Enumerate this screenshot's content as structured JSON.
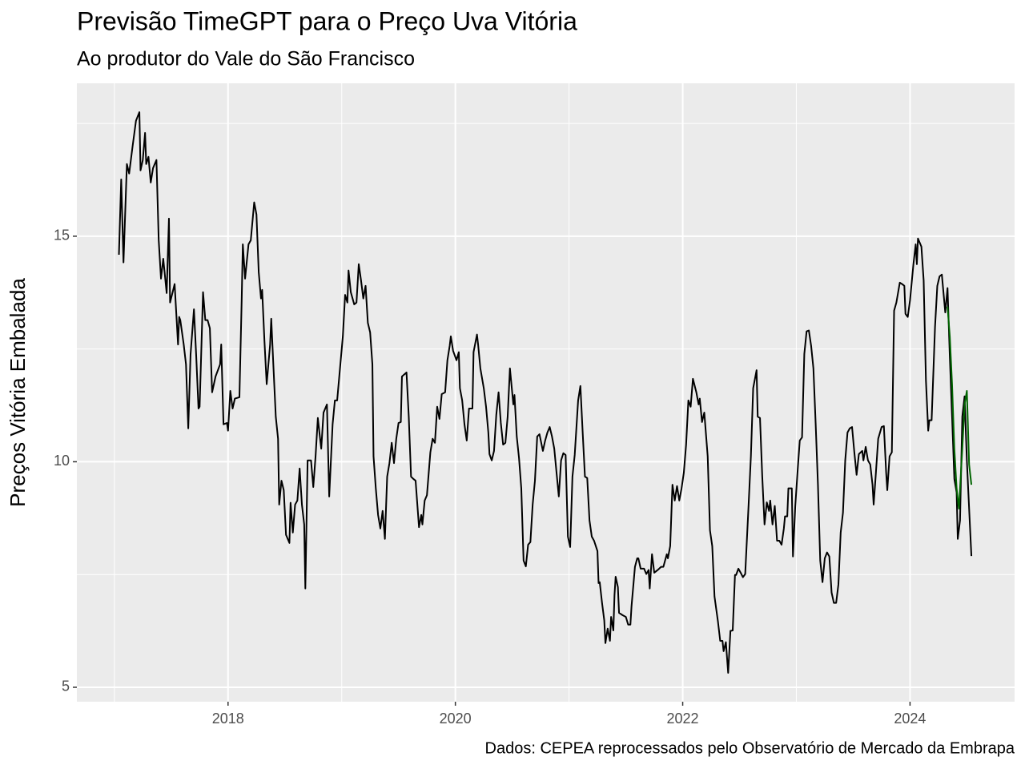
{
  "chart_data": {
    "type": "line",
    "title": "Previsão TimeGPT para o Preço Uva Vitória",
    "subtitle": "Ao produtor do Vale do São Francisco",
    "y_label": "Preços Vitória Embalada",
    "caption": "Dados: CEPEA reprocessados pelo Observatório de Mercado da Embrapa",
    "xlim": [
      2016.67,
      2024.92
    ],
    "ylim": [
      4.68,
      18.39
    ],
    "xticks": [
      2018,
      2020,
      2022,
      2024
    ],
    "yticks": [
      5,
      10,
      15
    ],
    "grid": true,
    "series": [
      {
        "color": "#000000",
        "x": [
          2017.04,
          2017.06,
          2017.08,
          2017.11,
          2017.13,
          2017.16,
          2017.19,
          2017.22,
          2017.23,
          2017.25,
          2017.27,
          2017.28,
          2017.3,
          2017.32,
          2017.34,
          2017.37,
          2017.39,
          2017.41,
          2017.43,
          2017.46,
          2017.48,
          2017.49,
          2017.53,
          2017.56,
          2017.57,
          2017.58,
          2017.61,
          2017.63,
          2017.65,
          2017.67,
          2017.7,
          2017.72,
          2017.74,
          2017.75,
          2017.78,
          2017.8,
          2017.82,
          2017.84,
          2017.86,
          2017.89,
          2017.93,
          2017.94,
          2017.96,
          2017.99,
          2018.0,
          2018.02,
          2018.04,
          2018.06,
          2018.1,
          2018.12,
          2018.13,
          2018.15,
          2018.18,
          2018.2,
          2018.23,
          2018.25,
          2018.27,
          2018.29,
          2018.3,
          2018.32,
          2018.34,
          2018.37,
          2018.38,
          2018.4,
          2018.42,
          2018.44,
          2018.45,
          2018.47,
          2018.49,
          2018.51,
          2018.54,
          2018.55,
          2018.57,
          2018.59,
          2018.61,
          2018.63,
          2018.65,
          2018.67,
          2018.68,
          2018.7,
          2018.73,
          2018.75,
          2018.77,
          2018.79,
          2018.81,
          2018.82,
          2018.84,
          2018.87,
          2018.89,
          2018.92,
          2018.94,
          2018.96,
          2018.98,
          2019.01,
          2019.03,
          2019.05,
          2019.06,
          2019.08,
          2019.11,
          2019.13,
          2019.15,
          2019.17,
          2019.19,
          2019.21,
          2019.23,
          2019.25,
          2019.27,
          2019.28,
          2019.3,
          2019.32,
          2019.34,
          2019.36,
          2019.38,
          2019.4,
          2019.42,
          2019.44,
          2019.46,
          2019.48,
          2019.5,
          2019.52,
          2019.53,
          2019.57,
          2019.59,
          2019.61,
          2019.63,
          2019.65,
          2019.68,
          2019.7,
          2019.71,
          2019.73,
          2019.75,
          2019.78,
          2019.8,
          2019.82,
          2019.84,
          2019.86,
          2019.88,
          2019.91,
          2019.93,
          2019.95,
          2019.96,
          2019.98,
          2020.01,
          2020.03,
          2020.04,
          2020.06,
          2020.08,
          2020.1,
          2020.12,
          2020.15,
          2020.16,
          2020.19,
          2020.2,
          2020.22,
          2020.25,
          2020.27,
          2020.29,
          2020.3,
          2020.32,
          2020.34,
          2020.36,
          2020.38,
          2020.4,
          2020.42,
          2020.44,
          2020.46,
          2020.48,
          2020.51,
          2020.52,
          2020.54,
          2020.56,
          2020.58,
          2020.6,
          2020.62,
          2020.64,
          2020.66,
          2020.68,
          2020.7,
          2020.72,
          2020.74,
          2020.77,
          2020.79,
          2020.81,
          2020.83,
          2020.85,
          2020.87,
          2020.89,
          2020.91,
          2020.93,
          2020.95,
          2020.97,
          2020.99,
          2021.01,
          2021.03,
          2021.05,
          2021.08,
          2021.1,
          2021.12,
          2021.14,
          2021.16,
          2021.18,
          2021.2,
          2021.22,
          2021.25,
          2021.26,
          2021.27,
          2021.29,
          2021.31,
          2021.32,
          2021.34,
          2021.36,
          2021.37,
          2021.39,
          2021.4,
          2021.41,
          2021.43,
          2021.44,
          2021.47,
          2021.5,
          2021.52,
          2021.54,
          2021.55,
          2021.58,
          2021.6,
          2021.61,
          2021.63,
          2021.66,
          2021.68,
          2021.7,
          2021.71,
          2021.73,
          2021.75,
          2021.78,
          2021.81,
          2021.83,
          2021.86,
          2021.87,
          2021.89,
          2021.91,
          2021.93,
          2021.95,
          2021.97,
          2021.99,
          2022.01,
          2022.03,
          2022.05,
          2022.07,
          2022.09,
          2022.12,
          2022.14,
          2022.15,
          2022.17,
          2022.19,
          2022.22,
          2022.24,
          2022.26,
          2022.28,
          2022.31,
          2022.33,
          2022.35,
          2022.36,
          2022.38,
          2022.4,
          2022.42,
          2022.44,
          2022.46,
          2022.47,
          2022.49,
          2022.51,
          2022.53,
          2022.55,
          2022.58,
          2022.6,
          2022.62,
          2022.65,
          2022.66,
          2022.68,
          2022.7,
          2022.72,
          2022.74,
          2022.76,
          2022.77,
          2022.79,
          2022.81,
          2022.83,
          2022.85,
          2022.87,
          2022.89,
          2022.9,
          2022.92,
          2022.93,
          2022.96,
          2022.97,
          2022.99,
          2023.01,
          2023.03,
          2023.05,
          2023.07,
          2023.09,
          2023.11,
          2023.13,
          2023.15,
          2023.17,
          2023.19,
          2023.21,
          2023.23,
          2023.25,
          2023.27,
          2023.29,
          2023.31,
          2023.33,
          2023.35,
          2023.37,
          2023.39,
          2023.41,
          2023.43,
          2023.45,
          2023.47,
          2023.49,
          2023.51,
          2023.53,
          2023.55,
          2023.58,
          2023.59,
          2023.61,
          2023.63,
          2023.65,
          2023.67,
          2023.68,
          2023.7,
          2023.72,
          2023.75,
          2023.77,
          2023.79,
          2023.8,
          2023.82,
          2023.84,
          2023.86,
          2023.88,
          2023.91,
          2023.93,
          2023.95,
          2023.96,
          2023.98,
          2024.0,
          2024.03,
          2024.05,
          2024.06,
          2024.07,
          2024.1,
          2024.12,
          2024.14,
          2024.16,
          2024.17,
          2024.19,
          2024.22,
          2024.24,
          2024.26,
          2024.28,
          2024.31,
          2024.33,
          2024.35,
          2024.37,
          2024.39,
          2024.41,
          2024.42,
          2024.44,
          2024.46,
          2024.48,
          2024.5,
          2024.52,
          2024.54
        ],
        "values": [
          14.59,
          16.26,
          14.42,
          16.6,
          16.39,
          16.99,
          17.56,
          17.75,
          16.46,
          16.69,
          17.29,
          16.6,
          16.76,
          16.19,
          16.51,
          16.69,
          14.91,
          14.06,
          14.5,
          13.74,
          15.39,
          13.53,
          13.94,
          12.6,
          13.21,
          13.14,
          12.6,
          12.16,
          10.74,
          12.37,
          13.38,
          12.34,
          11.18,
          11.22,
          13.76,
          13.14,
          13.14,
          12.96,
          11.54,
          11.89,
          12.16,
          12.6,
          10.83,
          10.86,
          10.69,
          11.57,
          11.18,
          11.4,
          11.43,
          13.58,
          14.82,
          14.06,
          14.82,
          14.91,
          15.75,
          15.48,
          14.2,
          13.62,
          13.81,
          12.69,
          11.72,
          12.6,
          13.17,
          12.07,
          11.0,
          10.51,
          9.05,
          9.58,
          9.37,
          8.38,
          8.2,
          9.09,
          8.43,
          9.05,
          9.14,
          9.85,
          9.05,
          8.61,
          7.19,
          10.03,
          10.03,
          9.44,
          10.12,
          10.97,
          10.51,
          10.29,
          11.09,
          11.27,
          9.23,
          10.83,
          11.36,
          11.36,
          11.93,
          12.78,
          13.7,
          13.53,
          14.24,
          13.76,
          13.49,
          13.53,
          14.38,
          14.02,
          13.62,
          13.9,
          13.08,
          12.87,
          12.16,
          10.12,
          9.41,
          8.82,
          8.52,
          8.91,
          8.29,
          9.67,
          9.97,
          10.42,
          9.97,
          10.51,
          10.86,
          10.88,
          11.89,
          11.98,
          11.0,
          9.67,
          9.62,
          9.58,
          8.55,
          8.82,
          8.61,
          9.14,
          9.26,
          10.21,
          10.51,
          10.42,
          11.22,
          10.95,
          11.5,
          11.54,
          12.25,
          12.57,
          12.78,
          12.46,
          12.25,
          12.43,
          11.63,
          11.36,
          10.83,
          10.47,
          11.18,
          11.18,
          12.43,
          12.82,
          12.6,
          12.07,
          11.63,
          11.22,
          10.65,
          10.17,
          10.03,
          10.24,
          11.04,
          11.54,
          10.86,
          10.38,
          10.42,
          11.0,
          12.07,
          11.27,
          11.48,
          10.56,
          10.08,
          9.41,
          7.81,
          7.68,
          8.16,
          8.22,
          9.05,
          9.58,
          10.56,
          10.61,
          10.24,
          10.47,
          10.65,
          10.77,
          10.56,
          10.29,
          9.76,
          9.23,
          10.03,
          10.19,
          10.15,
          8.34,
          8.11,
          9.67,
          10.15,
          11.36,
          11.68,
          10.65,
          9.67,
          9.64,
          8.7,
          8.34,
          8.25,
          8.02,
          7.31,
          7.33,
          6.88,
          6.48,
          5.98,
          6.3,
          6.03,
          6.56,
          6.26,
          7.04,
          7.45,
          7.22,
          6.65,
          6.6,
          6.56,
          6.39,
          6.39,
          6.8,
          7.67,
          7.86,
          7.86,
          7.63,
          7.63,
          7.51,
          7.6,
          7.19,
          7.95,
          7.54,
          7.6,
          7.67,
          7.67,
          7.95,
          7.86,
          8.13,
          9.49,
          9.14,
          9.46,
          9.14,
          9.41,
          9.76,
          10.38,
          11.36,
          11.22,
          11.84,
          11.54,
          11.27,
          11.4,
          10.88,
          11.09,
          10.12,
          8.48,
          8.13,
          7.01,
          6.46,
          6.03,
          6.03,
          5.8,
          6.0,
          5.32,
          6.25,
          6.26,
          7.49,
          7.49,
          7.63,
          7.54,
          7.44,
          7.51,
          9.05,
          10.12,
          11.63,
          12.03,
          11.0,
          10.97,
          9.67,
          8.61,
          9.1,
          8.91,
          9.14,
          8.61,
          9.02,
          8.25,
          8.25,
          8.16,
          8.52,
          8.79,
          8.79,
          9.41,
          9.41,
          7.9,
          9.0,
          9.76,
          10.47,
          10.54,
          12.39,
          12.89,
          12.91,
          12.57,
          12.07,
          10.83,
          9.49,
          7.81,
          7.33,
          7.86,
          7.99,
          7.9,
          7.1,
          6.87,
          6.87,
          7.28,
          8.43,
          8.87,
          10.03,
          10.65,
          10.74,
          10.77,
          10.21,
          9.71,
          10.17,
          10.24,
          10.03,
          10.33,
          10.03,
          9.94,
          9.49,
          9.05,
          9.76,
          10.51,
          10.77,
          10.79,
          9.76,
          9.37,
          10.12,
          10.21,
          13.35,
          13.53,
          13.97,
          13.94,
          13.9,
          13.28,
          13.21,
          13.58,
          14.38,
          14.82,
          14.38,
          14.95,
          14.77,
          14.02,
          11.8,
          10.69,
          10.92,
          10.92,
          12.99,
          13.9,
          14.11,
          14.15,
          13.31,
          13.85,
          12.34,
          11.0,
          9.62,
          9.32,
          8.29,
          8.7,
          11.0,
          11.45,
          10.03,
          8.96,
          7.91
        ]
      },
      {
        "color": "#006400",
        "x": [
          2024.33,
          2024.35,
          2024.37,
          2024.39,
          2024.41,
          2024.43,
          2024.46,
          2024.48,
          2024.5,
          2024.52,
          2024.54
        ],
        "values": [
          13.44,
          12.78,
          11.71,
          10.29,
          9.41,
          8.96,
          10.29,
          11.27,
          11.57,
          9.94,
          9.49
        ]
      }
    ]
  }
}
